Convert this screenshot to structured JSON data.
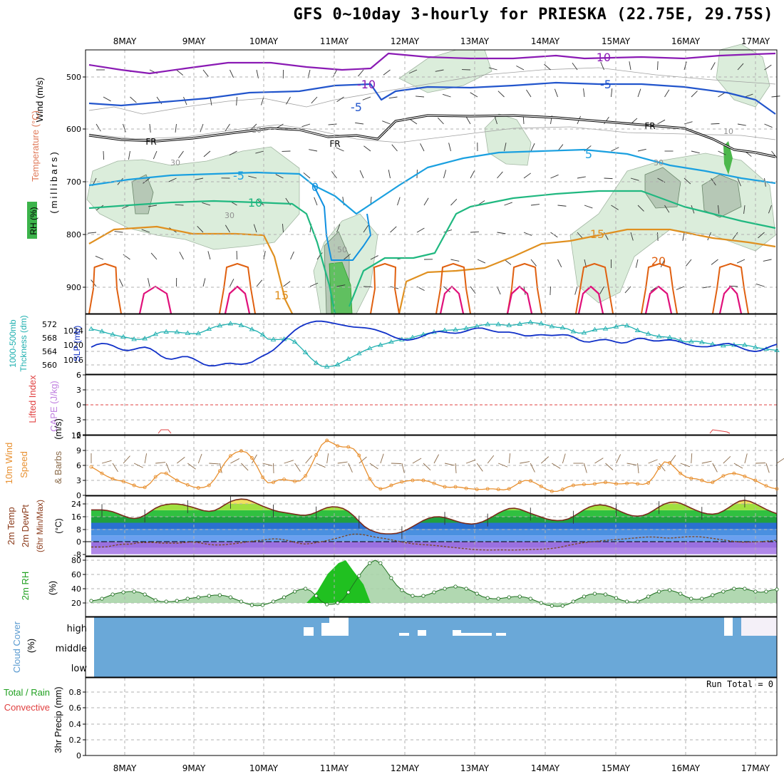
{
  "title": "GFS 0~10day 3-hourly for PRIESKA (22.75E, 29.75S)",
  "date_labels": [
    "8MAY",
    "9MAY",
    "10MAY",
    "11MAY",
    "12MAY",
    "13MAY",
    "14MAY",
    "15MAY",
    "16MAY",
    "17MAY"
  ],
  "colors": {
    "grid": "#b0b0b0",
    "frame": "#000000",
    "temp_m10": "#8a1ab4",
    "temp_m5": "#2255cc",
    "temp_0": "#1090e0",
    "temp_5": "#1aa0e0",
    "temp_10": "#20b880",
    "temp_15": "#e09020",
    "temp_20": "#e06010",
    "temp_25": "#e0107a",
    "fr_line": "#000000",
    "rh_fill": "#d8ecd8",
    "slp": "#1030c8",
    "thickness": "#20b0b0",
    "lifted": "#e04040",
    "wind10": "#e89030",
    "barbs": "#8b6b4a",
    "rh2m": "#20a020",
    "cloud": "#6aa8d8",
    "precip_grid": "#bbbbbb"
  },
  "panels": {
    "upper": {
      "ylabel_wind": "Wind (m/s)",
      "ylabel_temp": "Temperature (°C)",
      "ylabel_rh": "RH (%)",
      "ylabel_mb": "(millibars)",
      "ticks": [
        "500",
        "600",
        "700",
        "800",
        "900"
      ],
      "contour_labels": {
        "t_m10a": "-10",
        "t_m10b": "-10",
        "t_m5a": "-5",
        "t_m5b": "-5",
        "t_m5c": "-5",
        "t_0": "0",
        "t_5": "5",
        "t_10": "10",
        "t_15a": "15",
        "t_15b": "15",
        "t_20": "20",
        "fr1": "FR",
        "fr2": "FR",
        "fr3": "FR",
        "rh30a": "30",
        "rh30b": "30",
        "rh30c": "30",
        "rh50": "50",
        "rh10a": "10",
        "rh10b": "10"
      }
    },
    "slp": {
      "ylabel_thick": "1000-500mb",
      "ylabel_thick2": "Thckness (dm)",
      "ylabel_slp": "SLP (mb)",
      "left_ticks": [
        "572",
        "568",
        "564",
        "560"
      ],
      "right_ticks": [
        "1024",
        "1020",
        "1016"
      ]
    },
    "cape": {
      "ylabel_li": "Lifted Index",
      "ylabel_cape": "CAPE (J/kg)",
      "ticks": [
        "6",
        "3",
        "0",
        "3",
        "6"
      ]
    },
    "wind10": {
      "ylabel1": "10m Wind",
      "ylabel2": "Speed",
      "ylabel3": "& Barbs",
      "ylabel4": "(m/s)",
      "ticks": [
        "12",
        "9",
        "6",
        "3",
        "0"
      ]
    },
    "temp2m": {
      "ylabel1": "2m Temp",
      "ylabel2": "2m DewPt",
      "ylabel3": "(6hr Min/Max)",
      "ylabel4": "(°C)",
      "ticks": [
        "24",
        "16",
        "8",
        "0",
        "-8"
      ]
    },
    "rh2m": {
      "ylabel1": "2m RH",
      "ylabel2": "(%)",
      "ticks": [
        "80",
        "60",
        "40",
        "20"
      ]
    },
    "cloud": {
      "ylabel1": "Cloud Cover",
      "ylabel2": "(%)",
      "ticks": [
        "high",
        "middle",
        "low"
      ]
    },
    "precip": {
      "ylabel1": "Total / Rain",
      "ylabel2": "Convective",
      "ylabel3": "3hr Precip (mm)",
      "run_total": "Run Total = 0",
      "ticks": [
        "0.8",
        "0.6",
        "0.4",
        "0.2",
        "0"
      ]
    }
  },
  "chart_data": [
    {
      "type": "line",
      "title": "1000-500mb Thickness (dm) and SLP (mb)",
      "x": "3-hourly steps from 7 May 12Z to 17 May 06Z",
      "series": [
        {
          "name": "1000-500mb Thckness (dm)",
          "values": [
            570.6,
            570.3,
            569.9,
            569.4,
            569.0,
            568.6,
            568.3,
            568.0,
            567.6,
            567.5,
            567.8,
            568.4,
            569.1,
            569.7,
            569.8,
            569.8,
            569.7,
            569.5,
            569.4,
            569.2,
            569.3,
            569.9,
            570.6,
            571.2,
            571.6,
            571.9,
            572.2,
            572.2,
            571.7,
            571.2,
            570.5,
            569.9,
            568.9,
            567.6,
            567.5,
            567.5,
            567.6,
            567.7,
            566.8,
            565.3,
            563.7,
            562.0,
            560.6,
            559.6,
            559.5,
            559.6,
            560.1,
            561.0,
            561.8,
            562.6,
            563.4,
            564.2,
            564.9,
            565.5,
            565.9,
            566.3,
            566.8,
            567.2,
            567.5,
            567.7,
            568.1,
            568.6,
            569.0,
            569.4,
            569.7,
            570.0,
            570.2,
            570.3,
            570.4,
            570.5,
            570.8,
            571.1,
            571.4,
            571.8,
            572.0,
            572.0,
            572.0,
            571.8,
            571.7,
            571.8,
            572.1,
            572.4,
            572.6,
            572.4,
            572.2,
            571.8,
            571.4,
            571.1,
            571.0,
            570.6,
            569.9,
            569.4,
            569.5,
            569.9,
            570.4,
            570.6,
            570.7,
            570.9,
            571.3,
            571.7,
            571.6,
            571.0,
            570.2,
            569.6,
            569.2,
            568.7,
            568.4,
            568.3,
            568.1,
            567.8,
            567.2,
            566.8,
            566.9,
            567.0,
            566.7,
            566.4,
            566.1,
            565.8,
            565.7,
            565.8,
            565.9,
            566.0,
            565.9,
            565.6,
            565.2,
            564.9,
            564.7,
            564.5,
            564.3
          ]
        },
        {
          "name": "SLP (mb)",
          "values": [
            1019.5,
            1020.2,
            1020.5,
            1020.4,
            1019.9,
            1019.2,
            1018.7,
            1018.6,
            1018.9,
            1019.3,
            1019.5,
            1019.1,
            1018.2,
            1017.1,
            1016.4,
            1016.2,
            1016.5,
            1016.9,
            1016.9,
            1016.4,
            1015.6,
            1014.8,
            1014.4,
            1014.4,
            1014.7,
            1015.0,
            1015.1,
            1014.9,
            1014.8,
            1015.0,
            1015.4,
            1016.3,
            1017.1,
            1017.8,
            1018.7,
            1020.0,
            1021.4,
            1022.8,
            1024.1,
            1025.1,
            1025.8,
            1026.3,
            1026.6,
            1026.6,
            1026.4,
            1026.1,
            1025.8,
            1025.5,
            1025.2,
            1025.0,
            1024.9,
            1024.8,
            1024.6,
            1024.3,
            1023.8,
            1023.3,
            1022.6,
            1022.0,
            1021.6,
            1021.4,
            1021.6,
            1022.0,
            1022.6,
            1023.2,
            1023.6,
            1023.8,
            1023.6,
            1023.4,
            1023.3,
            1023.5,
            1023.9,
            1024.4,
            1024.7,
            1024.7,
            1024.3,
            1023.9,
            1023.6,
            1023.6,
            1023.6,
            1023.4,
            1023.0,
            1022.6,
            1022.6,
            1022.8,
            1022.9,
            1022.8,
            1022.7,
            1022.8,
            1022.9,
            1022.8,
            1022.3,
            1021.5,
            1021.0,
            1020.9,
            1021.2,
            1021.5,
            1021.6,
            1021.3,
            1020.9,
            1020.6,
            1020.8,
            1021.4,
            1021.9,
            1021.9,
            1021.5,
            1021.2,
            1021.2,
            1021.4,
            1021.5,
            1021.3,
            1020.9,
            1020.4,
            1020.0,
            1019.7,
            1019.6,
            1019.6,
            1019.8,
            1020.1,
            1020.4,
            1020.5,
            1020.1,
            1019.5,
            1018.9,
            1018.5,
            1018.3,
            1018.6,
            1019.2,
            1019.8,
            1020.3
          ]
        }
      ]
    },
    {
      "type": "line",
      "title": "10m Wind Speed (m/s)",
      "series": [
        {
          "name": "10m Wind Speed",
          "values": [
            5.7,
            5.1,
            4.4,
            3.8,
            3.3,
            3.0,
            2.8,
            2.4,
            2.0,
            1.6,
            1.6,
            2.4,
            3.7,
            4.5,
            4.4,
            3.7,
            3.0,
            2.5,
            2.1,
            1.7,
            1.5,
            1.6,
            2.0,
            3.2,
            4.9,
            6.6,
            7.9,
            8.6,
            8.9,
            8.6,
            7.5,
            5.7,
            3.6,
            2.5,
            2.6,
            3.1,
            3.2,
            3.0,
            2.8,
            2.9,
            3.9,
            5.8,
            8.1,
            10.1,
            11.0,
            10.5,
            9.9,
            9.7,
            9.7,
            9.3,
            8.0,
            5.6,
            3.3,
            1.8,
            1.3,
            1.5,
            2.0,
            2.4,
            2.7,
            2.9,
            3.0,
            3.1,
            3.0,
            2.8,
            2.4,
            2.0,
            1.7,
            1.6,
            1.7,
            1.6,
            1.4,
            1.3,
            1.2,
            1.2,
            1.3,
            1.3,
            1.2,
            1.1,
            1.3,
            1.9,
            2.6,
            3.0,
            2.9,
            2.4,
            1.8,
            1.2,
            0.8,
            0.8,
            1.2,
            1.7,
            2.0,
            2.1,
            2.2,
            2.2,
            2.3,
            2.5,
            2.6,
            2.5,
            2.3,
            2.3,
            2.4,
            2.5,
            2.3,
            2.2,
            2.5,
            3.7,
            5.5,
            6.7,
            6.5,
            5.5,
            4.4,
            3.7,
            3.4,
            3.3,
            3.0,
            2.6,
            2.6,
            3.2,
            3.9,
            4.3,
            4.4,
            4.2,
            3.8,
            3.4,
            3.0,
            2.4,
            1.9,
            1.5,
            1.3
          ]
        }
      ]
    },
    {
      "type": "line",
      "title": "2m Temp / 2m DewPt (°C)",
      "series": [
        {
          "name": "2m Temp",
          "values": [
            20.2,
            20.2,
            20.2,
            19.8,
            19.0,
            17.8,
            16.4,
            15.2,
            14.7,
            15.2,
            16.8,
            19.1,
            21.3,
            22.8,
            23.6,
            24.0,
            23.9,
            23.5,
            22.7,
            21.8,
            20.7,
            19.7,
            19.3,
            19.8,
            21.4,
            23.6,
            25.5,
            26.6,
            27.1,
            26.8,
            25.6,
            24.1,
            22.6,
            21.3,
            20.0,
            19.1,
            18.5,
            18.0,
            17.4,
            16.9,
            16.8,
            17.4,
            18.7,
            20.3,
            21.6,
            22.2,
            22.0,
            21.1,
            19.2,
            16.4,
            12.9,
            9.7,
            7.5,
            6.2,
            5.3,
            5.0,
            5.0,
            5.3,
            6.2,
            7.7,
            9.6,
            11.6,
            13.5,
            14.9,
            15.7,
            15.8,
            15.3,
            14.3,
            13.2,
            12.2,
            11.5,
            11.2,
            11.6,
            12.6,
            14.2,
            16.1,
            18.1,
            19.8,
            21.0,
            21.3,
            20.6,
            19.3,
            18.0,
            16.8,
            15.6,
            14.5,
            13.7,
            13.4,
            13.6,
            14.4,
            16.0,
            18.1,
            20.3,
            22.0,
            23.0,
            23.4,
            23.0,
            22.0,
            20.5,
            18.9,
            17.5,
            16.5,
            16.2,
            16.6,
            17.9,
            19.9,
            22.1,
            23.9,
            25.0,
            25.2,
            24.4,
            22.9,
            21.3,
            19.8,
            18.5,
            17.7,
            17.5,
            18.0,
            19.5,
            21.6,
            23.9,
            25.7,
            26.3,
            25.6,
            24.1,
            22.3,
            20.5,
            19.0,
            17.8
          ]
        },
        {
          "name": "2m DewPt",
          "values": [
            -3.4,
            -3.4,
            -3.4,
            -3.2,
            -2.6,
            -1.9,
            -1.6,
            -1.6,
            -1.2,
            -0.6,
            -0.6,
            -0.4,
            -0.6,
            -0.9,
            -0.9,
            -0.9,
            -1.0,
            -0.7,
            -0.3,
            -0.2,
            -0.6,
            -1.2,
            -1.7,
            -2.1,
            -2.1,
            -1.9,
            -1.5,
            -1.2,
            -0.7,
            -0.2,
            0.3,
            0.6,
            1.0,
            1.5,
            1.8,
            1.7,
            1.2,
            0.5,
            -0.4,
            -1.2,
            -1.5,
            -1.2,
            -0.6,
            0.0,
            0.7,
            1.5,
            2.3,
            3.3,
            4.2,
            4.8,
            4.8,
            4.3,
            3.6,
            2.9,
            2.4,
            1.9,
            1.2,
            0.5,
            -0.2,
            -0.8,
            -1.3,
            -1.6,
            -1.9,
            -2.1,
            -2.4,
            -2.7,
            -3.1,
            -3.5,
            -3.8,
            -4.2,
            -4.5,
            -4.9,
            -5.1,
            -5.2,
            -5.3,
            -5.3,
            -5.2,
            -5.2,
            -5.3,
            -5.3,
            -5.2,
            -5.1,
            -5.0,
            -4.9,
            -4.8,
            -4.6,
            -4.3,
            -3.9,
            -3.2,
            -2.4,
            -1.7,
            -1.1,
            -0.6,
            -0.2,
            0.1,
            0.5,
            0.8,
            1.1,
            1.3,
            1.6,
            1.9,
            2.2,
            2.5,
            2.8,
            3.0,
            3.0,
            2.7,
            2.4,
            2.3,
            2.5,
            2.8,
            3.1,
            3.2,
            3.2,
            3.0,
            2.6,
            2.1,
            1.6,
            1.1,
            0.6,
            0.2,
            -0.2,
            -0.3,
            -0.2,
            -0.1,
            0.0,
            0.3,
            0.6,
            0.9
          ]
        }
      ]
    },
    {
      "type": "area",
      "title": "2m RH (%)",
      "series": [
        {
          "name": "2m RH",
          "values": [
            23,
            24,
            26,
            29,
            32,
            34,
            35,
            36,
            36,
            35,
            32,
            28,
            24,
            22,
            22,
            22,
            23,
            24,
            26,
            27,
            28,
            29,
            30,
            31,
            31,
            30,
            28,
            25,
            22,
            19,
            17,
            16,
            17,
            19,
            22,
            25,
            28,
            32,
            36,
            39,
            40,
            37,
            30,
            22,
            18,
            18,
            20,
            25,
            35,
            47,
            58,
            68,
            76,
            80,
            76,
            66,
            55,
            45,
            38,
            33,
            30,
            29,
            30,
            32,
            35,
            38,
            40,
            42,
            43,
            42,
            40,
            37,
            33,
            29,
            27,
            26,
            26,
            27,
            28,
            29,
            29,
            28,
            26,
            23,
            20,
            17,
            16,
            15,
            16,
            18,
            22,
            26,
            29,
            32,
            33,
            33,
            32,
            30,
            27,
            24,
            22,
            21,
            22,
            25,
            29,
            33,
            36,
            38,
            38,
            36,
            33,
            29,
            26,
            25,
            26,
            28,
            31,
            34,
            36,
            38,
            40,
            41,
            40,
            38,
            36,
            35,
            36,
            38,
            39
          ]
        }
      ]
    },
    {
      "type": "bar",
      "title": "3hr Precip (mm)",
      "ylim": [
        0,
        1.0
      ],
      "series": [
        {
          "name": "Total / Rain",
          "values": [
            0
          ]
        }
      ]
    }
  ]
}
